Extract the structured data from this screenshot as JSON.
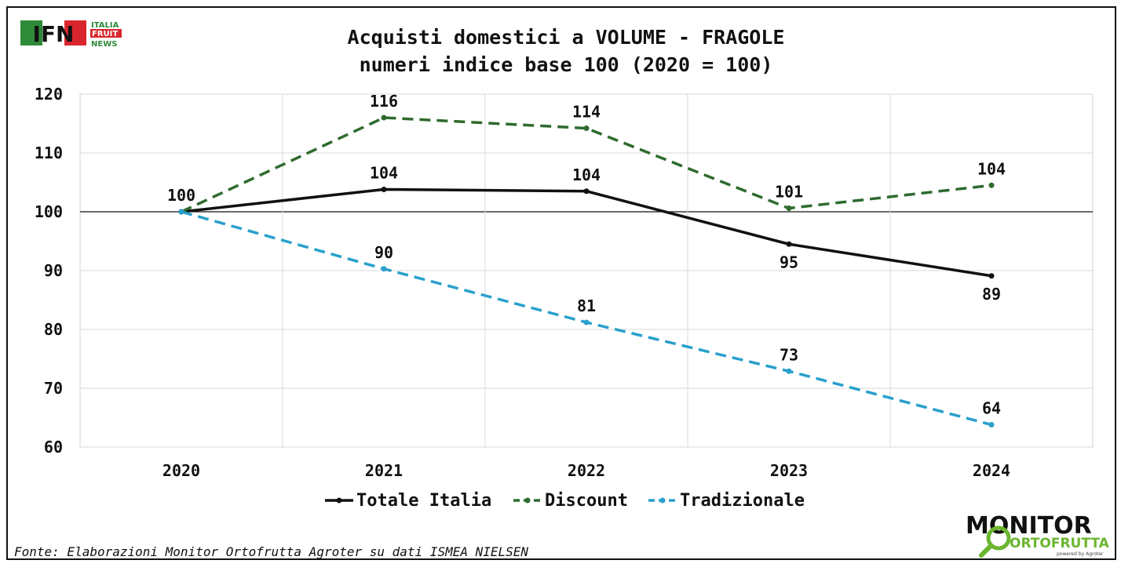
{
  "chart_data": {
    "type": "line",
    "title": "Acquisti domestici a VOLUME - FRAGOLE",
    "subtitle": "numeri indice base 100 (2020 = 100)",
    "categories": [
      "2020",
      "2021",
      "2022",
      "2023",
      "2024"
    ],
    "yticks": [
      "60",
      "70",
      "80",
      "90",
      "100",
      "110",
      "120"
    ],
    "ylim": [
      60,
      120
    ],
    "reference_line": 100,
    "grid": true,
    "legend_position": "bottom",
    "series": [
      {
        "name": "Totale Italia",
        "values": [
          100,
          103.8,
          103.5,
          94.5,
          89.1
        ],
        "labels": [
          "100",
          "104",
          "104",
          "95",
          "89"
        ],
        "color": "#111111",
        "dash": "solid"
      },
      {
        "name": "Discount",
        "values": [
          100,
          116,
          114.2,
          100.6,
          104.5
        ],
        "labels": [
          "100",
          "116",
          "114",
          "101",
          "104"
        ],
        "color": "#2e6b2e",
        "dash": "dashed"
      },
      {
        "name": "Tradizionale",
        "values": [
          100,
          90.3,
          81.2,
          72.9,
          63.8
        ],
        "labels": [
          "",
          "90",
          "81",
          "73",
          "64"
        ],
        "color": "#2aa0cc",
        "dash": "dashed"
      }
    ]
  },
  "source_text": "Fonte: Elaborazioni Monitor Ortofrutta Agroter su dati ISMEA NIELSEN",
  "logos": {
    "ifn": {
      "letters": "IFN",
      "line1": "ITALIA",
      "line2": "FRUIT",
      "line3": "NEWS"
    },
    "monitor": {
      "word1": "MONITOR",
      "word2": "ORTOFRUTTA",
      "tagline": "powered by Agroter"
    }
  }
}
